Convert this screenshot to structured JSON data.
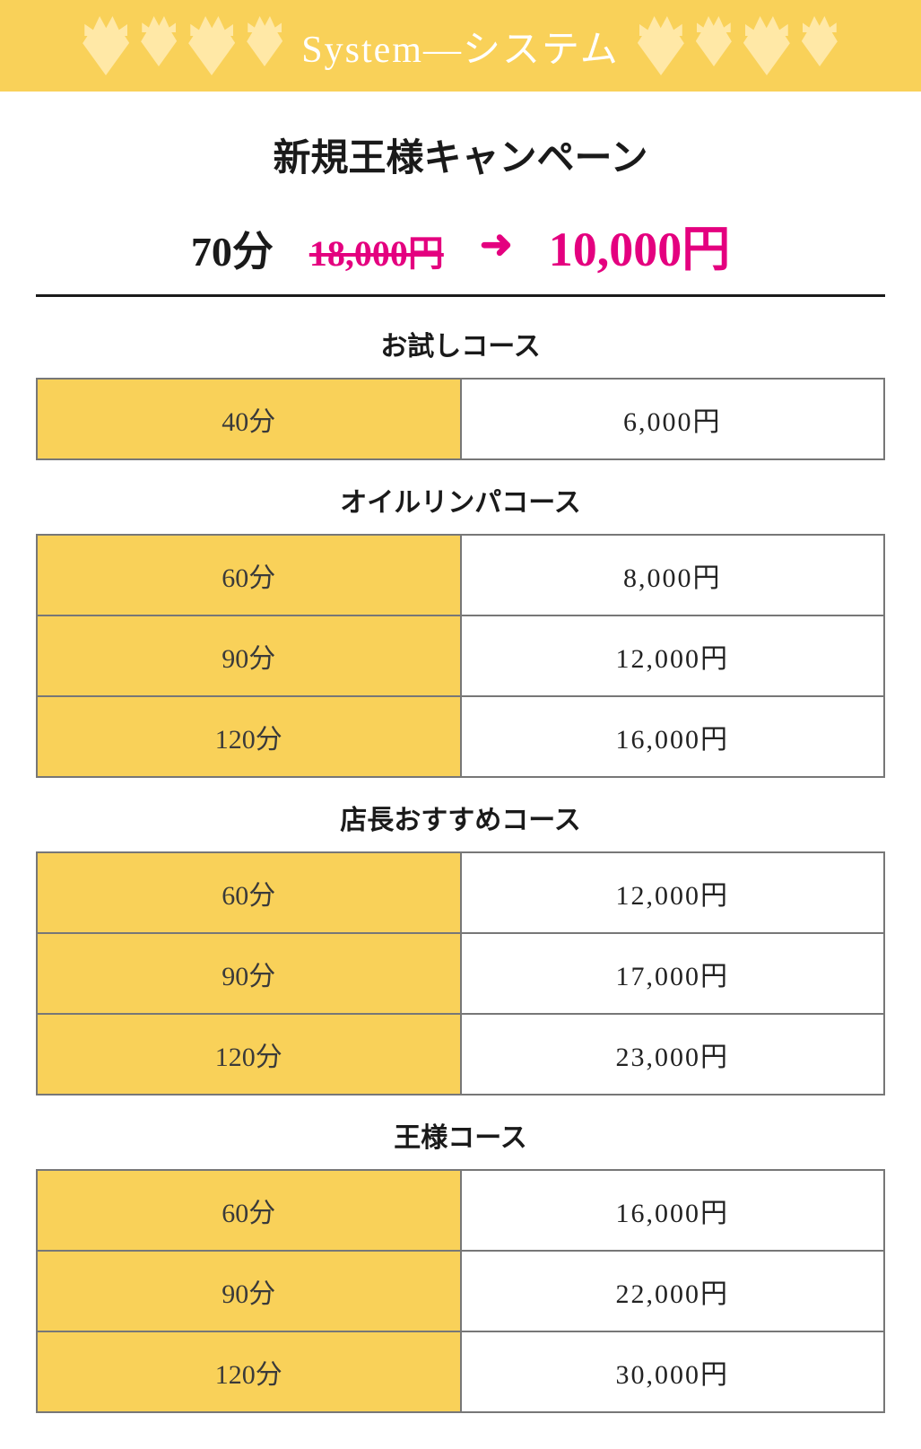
{
  "banner": {
    "title": "System—システム",
    "bg_color": "#f9d159",
    "text_color": "#ffffff",
    "diamond_color": "#ffe8a6"
  },
  "campaign": {
    "title": "新規王様キャンペーン",
    "duration": "70分",
    "old_price": "18,000円",
    "arrow": "➜",
    "new_price": "10,000円",
    "accent_color": "#e4007f"
  },
  "courses": [
    {
      "name": "お試しコース",
      "rows": [
        {
          "duration": "40分",
          "price": "6,000円"
        }
      ]
    },
    {
      "name": "オイルリンパコース",
      "rows": [
        {
          "duration": "60分",
          "price": "8,000円"
        },
        {
          "duration": "90分",
          "price": "12,000円"
        },
        {
          "duration": "120分",
          "price": "16,000円"
        }
      ]
    },
    {
      "name": "店長おすすめコース",
      "rows": [
        {
          "duration": "60分",
          "price": "12,000円"
        },
        {
          "duration": "90分",
          "price": "17,000円"
        },
        {
          "duration": "120分",
          "price": "23,000円"
        }
      ]
    },
    {
      "name": "王様コース",
      "rows": [
        {
          "duration": "60分",
          "price": "16,000円"
        },
        {
          "duration": "90分",
          "price": "22,000円"
        },
        {
          "duration": "120分",
          "price": "30,000円"
        }
      ]
    }
  ],
  "colors": {
    "duration_bg": "#f9d159",
    "price_bg": "#ffffff",
    "border": "#777777",
    "text": "#1a1a1a"
  }
}
